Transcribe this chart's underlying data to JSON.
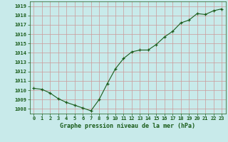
{
  "x": [
    0,
    1,
    2,
    3,
    4,
    5,
    6,
    7,
    8,
    9,
    10,
    11,
    12,
    13,
    14,
    15,
    16,
    17,
    18,
    19,
    20,
    21,
    22,
    23
  ],
  "y": [
    1010.2,
    1010.1,
    1009.7,
    1009.1,
    1008.7,
    1008.4,
    1008.1,
    1007.8,
    1009.0,
    1010.7,
    1012.3,
    1013.4,
    1014.1,
    1014.3,
    1014.3,
    1014.9,
    1015.7,
    1016.3,
    1017.2,
    1017.5,
    1018.2,
    1018.1,
    1018.5,
    1018.7
  ],
  "xlim": [
    -0.5,
    23.5
  ],
  "ylim": [
    1007.5,
    1019.5
  ],
  "yticks": [
    1008,
    1009,
    1010,
    1011,
    1012,
    1013,
    1014,
    1015,
    1016,
    1017,
    1018,
    1019
  ],
  "xtick_labels": [
    "0",
    "1",
    "2",
    "3",
    "4",
    "5",
    "6",
    "7",
    "8",
    "9",
    "10",
    "11",
    "12",
    "13",
    "14",
    "15",
    "16",
    "17",
    "18",
    "19",
    "20",
    "21",
    "22",
    "23"
  ],
  "xlabel": "Graphe pression niveau de la mer (hPa)",
  "line_color": "#1a5c1a",
  "marker": "+",
  "bg_color": "#c8eaea",
  "grid_color": "#cc9999",
  "label_color": "#1a5c1a"
}
